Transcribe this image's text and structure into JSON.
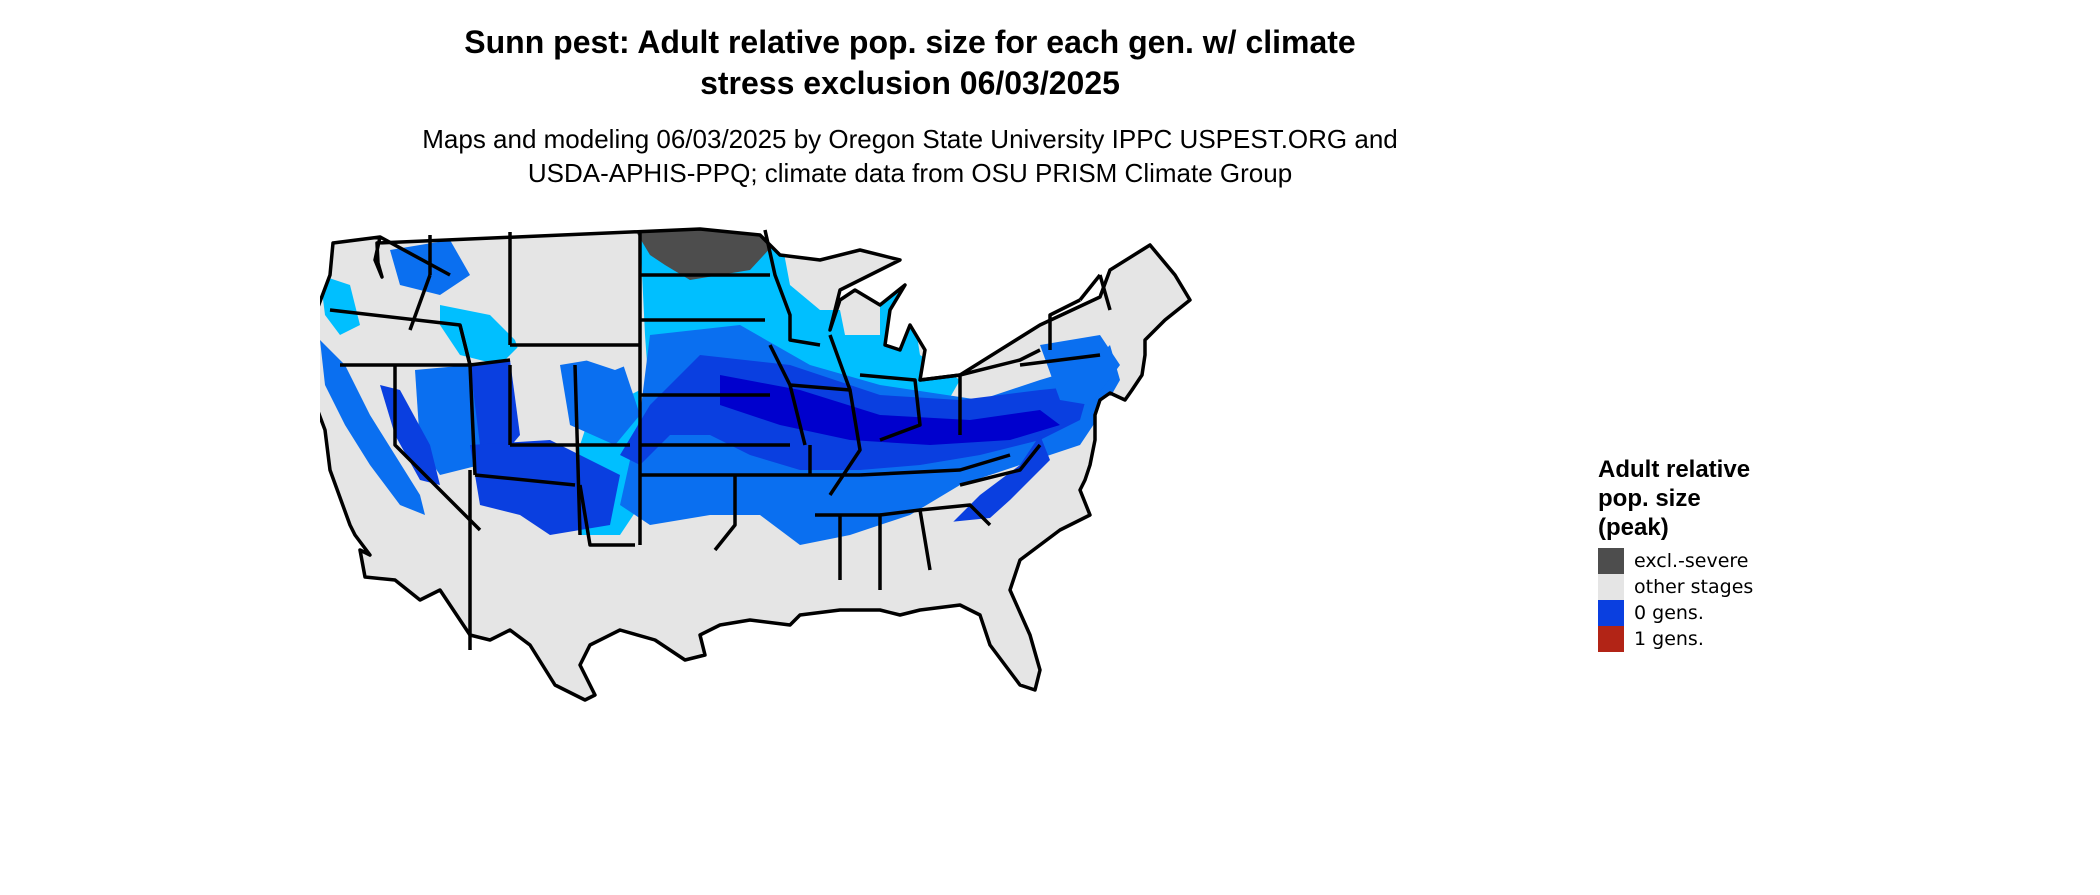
{
  "title": {
    "line1": "Sunn pest: Adult relative pop. size for each gen. w/ climate",
    "line2": "stress exclusion 06/03/2025"
  },
  "subtitle": {
    "line1": "Maps and modeling 06/03/2025 by Oregon State University IPPC USPEST.ORG and",
    "line2": "USDA-APHIS-PPQ; climate data from OSU PRISM Climate Group"
  },
  "legend": {
    "title_line1": "Adult relative",
    "title_line2": "pop. size",
    "title_line3": "(peak)",
    "items": [
      {
        "label": "excl.-severe",
        "color": "#4d4d4d"
      },
      {
        "label": "other stages",
        "color": "#e5e5e5"
      },
      {
        "label": "0 gens.",
        "color": "#0a3fe0"
      },
      {
        "label": "1 gens.",
        "color": "#b22416"
      }
    ]
  },
  "map_colors": {
    "background_land": "#e5e5e5",
    "excl_severe": "#4d4d4d",
    "light_cyan": "#00bfff",
    "mid_blue": "#0a6ff0",
    "deep_blue": "#0a3fe0",
    "darkest_blue": "#0000cd",
    "border": "#000000"
  }
}
